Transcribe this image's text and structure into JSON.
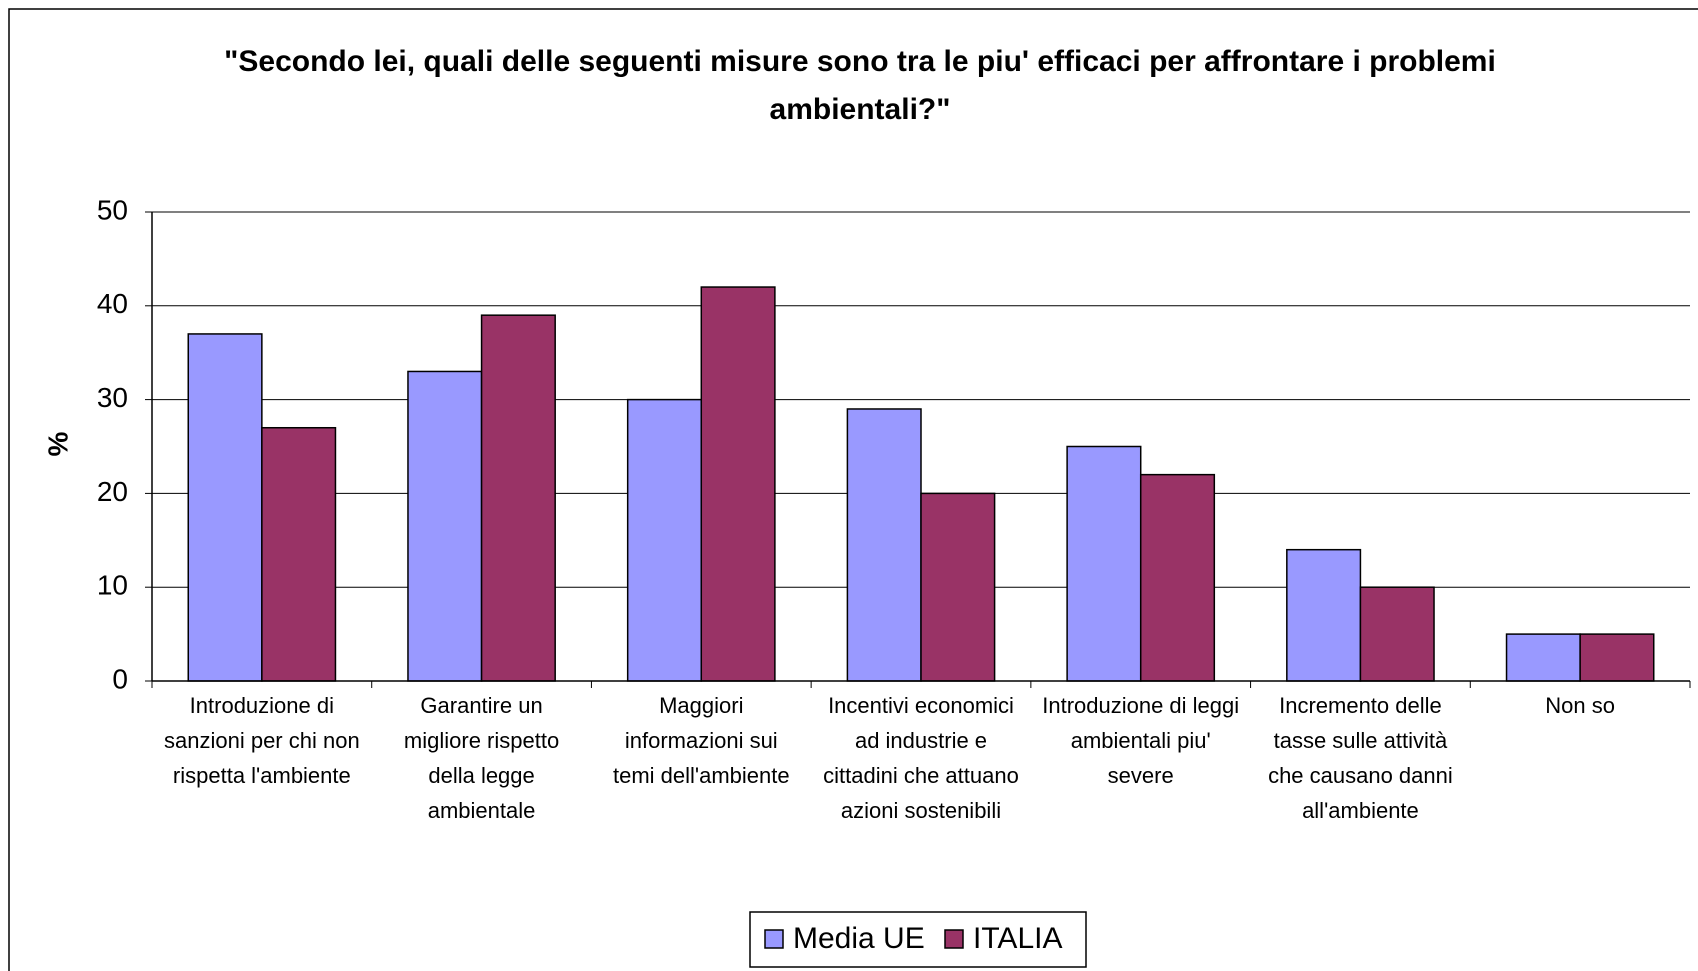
{
  "chart_data": {
    "type": "bar",
    "title": "\"Secondo lei, quali delle seguenti misure sono tra le piu' efficaci per affrontare i problemi ambientali?\"",
    "ylabel": "%",
    "categories": [
      "Introduzione di sanzioni per chi non rispetta l'ambiente",
      "Garantire un migliore rispetto della legge ambientale",
      "Maggiori informazioni sui temi dell'ambiente",
      "Incentivi economici ad industrie e cittadini che attuano azioni sostenibili",
      "Introduzione di leggi ambientali piu' severe",
      "Incremento delle tasse sulle attività che causano danni all'ambiente",
      "Non so"
    ],
    "series": [
      {
        "name": "Media UE",
        "color": "#9999ff",
        "values": [
          37,
          33,
          30,
          29,
          25,
          14,
          5
        ]
      },
      {
        "name": "ITALIA",
        "color": "#993366",
        "values": [
          27,
          39,
          42,
          20,
          22,
          10,
          5
        ]
      }
    ],
    "ylim": [
      0,
      50
    ],
    "yticks": [
      0,
      10,
      20,
      30,
      40,
      50
    ],
    "grid": true,
    "legend": "bottom"
  }
}
